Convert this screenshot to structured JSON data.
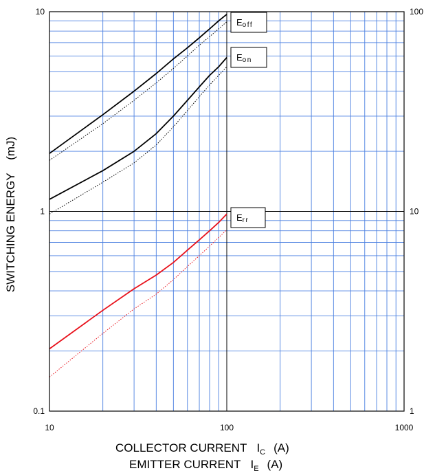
{
  "chart_data": {
    "type": "line",
    "x_scale": "log",
    "y_scale": "log",
    "xlim": [
      10,
      1000
    ],
    "ylim": [
      0.1,
      10
    ],
    "y2lim": [
      1,
      100
    ],
    "grid": true,
    "xlabel_line1_main": "COLLECTOR CURRENT",
    "xlabel_line1_sym": "I",
    "xlabel_line1_sub": "C",
    "xlabel_line1_unit": "(A)",
    "xlabel_line2_main": "EMITTER CURRENT",
    "xlabel_line2_sym": "I",
    "xlabel_line2_sub": "E",
    "xlabel_line2_unit": "(A)",
    "ylabel": "SWITCHING ENERGY    (mJ)",
    "x_ticks": [
      "10",
      "100",
      "1000"
    ],
    "y_ticks": [
      "0.1",
      "1",
      "10"
    ],
    "y2_ticks": [
      "1",
      "10",
      "100"
    ],
    "colors": {
      "grid": "#4a7fe0",
      "major_grid": "#000000",
      "err": "#e8101a",
      "curve": "#000000"
    },
    "labels": {
      "eoff": {
        "main": "E",
        "sub": "off"
      },
      "eon": {
        "main": "E",
        "sub": "on"
      },
      "err": {
        "main": "E",
        "sub": "rr"
      }
    },
    "series": [
      {
        "label_key": "eoff",
        "style": "solid",
        "color": "#000000",
        "x": [
          10,
          20,
          30,
          40,
          50,
          60,
          70,
          80,
          90,
          100
        ],
        "y": [
          1.95,
          3.05,
          4.0,
          4.9,
          5.8,
          6.6,
          7.4,
          8.2,
          9.0,
          9.7
        ]
      },
      {
        "label_key": "eoff",
        "style": "dotted",
        "color": "#000000",
        "x": [
          10,
          20,
          30,
          40,
          50,
          60,
          70,
          80,
          90,
          100
        ],
        "y": [
          1.8,
          2.75,
          3.6,
          4.4,
          5.2,
          6.0,
          6.8,
          7.5,
          8.2,
          8.9
        ]
      },
      {
        "label_key": "eon",
        "style": "solid",
        "color": "#000000",
        "x": [
          10,
          20,
          30,
          40,
          50,
          60,
          70,
          80,
          90,
          100
        ],
        "y": [
          1.15,
          1.6,
          2.0,
          2.45,
          3.0,
          3.6,
          4.2,
          4.8,
          5.3,
          5.9
        ]
      },
      {
        "label_key": "eon",
        "style": "dotted",
        "color": "#000000",
        "x": [
          10,
          20,
          30,
          40,
          50,
          60,
          70,
          80,
          90,
          100
        ],
        "y": [
          0.97,
          1.4,
          1.75,
          2.15,
          2.65,
          3.2,
          3.75,
          4.3,
          4.8,
          5.3
        ]
      },
      {
        "label_key": "err",
        "style": "solid",
        "color": "#e8101a",
        "x": [
          10,
          20,
          30,
          40,
          50,
          60,
          70,
          80,
          90,
          100
        ],
        "y": [
          0.205,
          0.32,
          0.41,
          0.48,
          0.555,
          0.64,
          0.72,
          0.8,
          0.88,
          0.97
        ]
      },
      {
        "label_key": "err",
        "style": "dotted",
        "color": "#e8101a",
        "x": [
          10,
          20,
          30,
          40,
          50,
          60,
          70,
          80,
          90,
          100
        ],
        "y": [
          0.148,
          0.245,
          0.325,
          0.385,
          0.455,
          0.53,
          0.6,
          0.67,
          0.74,
          0.81
        ]
      }
    ]
  }
}
